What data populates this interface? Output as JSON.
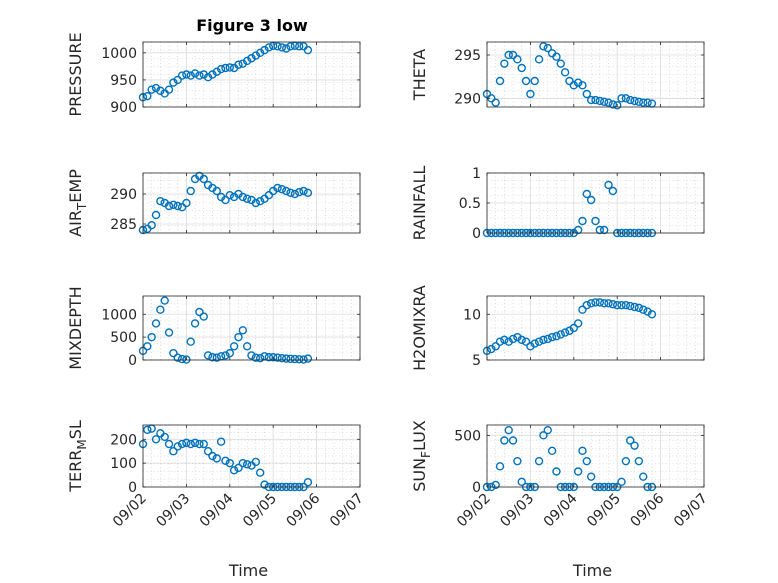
{
  "figure": {
    "title": "Figure 3 low"
  },
  "colors": {
    "marker": "#0072BD",
    "axis": "#262626",
    "grid": "#c8c8c8"
  },
  "chart_data": [
    {
      "type": "scatter",
      "name": "PRESSURE",
      "ylabel_main": "PRESSURE",
      "ylabel_sub": "",
      "ylabel_tail": "",
      "xlabel": "",
      "ylim": [
        900,
        1020
      ],
      "yticks": [
        900,
        950,
        1000
      ],
      "ytick_labels": [
        "900",
        "950",
        "1000"
      ],
      "xlim": [
        0,
        5
      ],
      "xticks": [
        0,
        1,
        2,
        3,
        4,
        5
      ],
      "xtick_labels": [
        "09/02",
        "09/03",
        "09/04",
        "09/05",
        "09/06",
        "09/07"
      ],
      "show_xtick_labels": false,
      "grid": true,
      "minor_grid": true,
      "x": [
        0.0,
        0.1,
        0.2,
        0.3,
        0.4,
        0.5,
        0.6,
        0.7,
        0.8,
        0.9,
        1.0,
        1.1,
        1.2,
        1.3,
        1.4,
        1.5,
        1.6,
        1.7,
        1.8,
        1.9,
        2.0,
        2.1,
        2.2,
        2.3,
        2.4,
        2.5,
        2.6,
        2.7,
        2.8,
        2.9,
        3.0,
        3.1,
        3.2,
        3.3,
        3.4,
        3.5,
        3.6,
        3.7,
        3.8
      ],
      "y": [
        918,
        920,
        932,
        935,
        930,
        925,
        932,
        945,
        950,
        958,
        960,
        958,
        962,
        958,
        960,
        955,
        960,
        965,
        970,
        972,
        973,
        972,
        978,
        980,
        985,
        990,
        995,
        1000,
        1005,
        1010,
        1013,
        1012,
        1010,
        1008,
        1012,
        1013,
        1012,
        1012,
        1005
      ]
    },
    {
      "type": "scatter",
      "name": "THETA",
      "ylabel_main": "THETA",
      "ylabel_sub": "",
      "ylabel_tail": "",
      "xlabel": "",
      "ylim": [
        289,
        296.5
      ],
      "yticks": [
        290,
        295
      ],
      "ytick_labels": [
        "290",
        "295"
      ],
      "xlim": [
        0,
        5
      ],
      "xticks": [
        0,
        1,
        2,
        3,
        4,
        5
      ],
      "xtick_labels": [
        "09/02",
        "09/03",
        "09/04",
        "09/05",
        "09/06",
        "09/07"
      ],
      "show_xtick_labels": false,
      "grid": true,
      "minor_grid": true,
      "x": [
        0.0,
        0.1,
        0.2,
        0.3,
        0.4,
        0.5,
        0.6,
        0.7,
        0.8,
        0.9,
        1.0,
        1.1,
        1.2,
        1.3,
        1.4,
        1.5,
        1.6,
        1.7,
        1.8,
        1.9,
        2.0,
        2.1,
        2.2,
        2.3,
        2.4,
        2.5,
        2.6,
        2.7,
        2.8,
        2.9,
        3.0,
        3.1,
        3.2,
        3.3,
        3.4,
        3.5,
        3.6,
        3.7,
        3.8
      ],
      "y": [
        290.5,
        290.0,
        289.5,
        292.0,
        294.0,
        295.0,
        295.0,
        294.5,
        293.5,
        292.0,
        290.5,
        292.0,
        294.5,
        296.0,
        295.8,
        295.2,
        294.8,
        294.0,
        293.0,
        292.0,
        291.5,
        291.8,
        291.5,
        290.5,
        289.8,
        289.8,
        289.7,
        289.6,
        289.5,
        289.3,
        289.2,
        290.0,
        290.0,
        289.8,
        289.7,
        289.6,
        289.5,
        289.5,
        289.4
      ]
    },
    {
      "type": "scatter",
      "name": "AIR_TEMP",
      "ylabel_main": "AIR",
      "ylabel_sub": "T",
      "ylabel_tail": "EMP",
      "xlabel": "",
      "ylim": [
        283.5,
        293.5
      ],
      "yticks": [
        285,
        290
      ],
      "ytick_labels": [
        "285",
        "290"
      ],
      "xlim": [
        0,
        5
      ],
      "xticks": [
        0,
        1,
        2,
        3,
        4,
        5
      ],
      "xtick_labels": [
        "09/02",
        "09/03",
        "09/04",
        "09/05",
        "09/06",
        "09/07"
      ],
      "show_xtick_labels": false,
      "grid": true,
      "minor_grid": true,
      "x": [
        0.0,
        0.1,
        0.2,
        0.3,
        0.4,
        0.5,
        0.6,
        0.7,
        0.8,
        0.9,
        1.0,
        1.1,
        1.2,
        1.3,
        1.4,
        1.5,
        1.6,
        1.7,
        1.8,
        1.9,
        2.0,
        2.1,
        2.2,
        2.3,
        2.4,
        2.5,
        2.6,
        2.7,
        2.8,
        2.9,
        3.0,
        3.1,
        3.2,
        3.3,
        3.4,
        3.5,
        3.6,
        3.7,
        3.8
      ],
      "y": [
        284.0,
        284.2,
        284.8,
        286.5,
        288.8,
        288.5,
        288.0,
        288.2,
        288.0,
        287.8,
        288.5,
        290.5,
        292.5,
        293.0,
        292.5,
        291.5,
        291.0,
        290.5,
        289.5,
        289.0,
        289.8,
        289.5,
        290.0,
        289.5,
        289.2,
        289.0,
        288.5,
        288.8,
        289.2,
        289.8,
        290.5,
        291.0,
        290.8,
        290.5,
        290.2,
        290.0,
        290.3,
        290.5,
        290.2
      ]
    },
    {
      "type": "scatter",
      "name": "RAINFALL",
      "ylabel_main": "RAINFALL",
      "ylabel_sub": "",
      "ylabel_tail": "",
      "xlabel": "",
      "ylim": [
        0,
        1
      ],
      "yticks": [
        0,
        0.5,
        1
      ],
      "ytick_labels": [
        "0",
        "0.5",
        "1"
      ],
      "xlim": [
        0,
        5
      ],
      "xticks": [
        0,
        1,
        2,
        3,
        4,
        5
      ],
      "xtick_labels": [
        "09/02",
        "09/03",
        "09/04",
        "09/05",
        "09/06",
        "09/07"
      ],
      "show_xtick_labels": false,
      "grid": true,
      "minor_grid": true,
      "x": [
        0.0,
        0.1,
        0.2,
        0.3,
        0.4,
        0.5,
        0.6,
        0.7,
        0.8,
        0.9,
        1.0,
        1.1,
        1.2,
        1.3,
        1.4,
        1.5,
        1.6,
        1.7,
        1.8,
        1.9,
        2.0,
        2.1,
        2.2,
        2.3,
        2.4,
        2.5,
        2.6,
        2.7,
        2.8,
        2.9,
        3.0,
        3.1,
        3.2,
        3.3,
        3.4,
        3.5,
        3.6,
        3.7,
        3.8
      ],
      "y": [
        0,
        0,
        0,
        0,
        0,
        0,
        0,
        0,
        0,
        0,
        0,
        0,
        0,
        0,
        0,
        0,
        0,
        0,
        0,
        0,
        0,
        0.05,
        0.2,
        0.65,
        0.55,
        0.2,
        0.05,
        0.05,
        0.8,
        0.7,
        0,
        0,
        0,
        0,
        0,
        0,
        0,
        0,
        0
      ]
    },
    {
      "type": "scatter",
      "name": "MIXDEPTH",
      "ylabel_main": "MIXDEPTH",
      "ylabel_sub": "",
      "ylabel_tail": "",
      "xlabel": "",
      "ylim": [
        0,
        1400
      ],
      "yticks": [
        0,
        500,
        1000
      ],
      "ytick_labels": [
        "0",
        "500",
        "1000"
      ],
      "xlim": [
        0,
        5
      ],
      "xticks": [
        0,
        1,
        2,
        3,
        4,
        5
      ],
      "xtick_labels": [
        "09/02",
        "09/03",
        "09/04",
        "09/05",
        "09/06",
        "09/07"
      ],
      "show_xtick_labels": false,
      "grid": true,
      "minor_grid": true,
      "x": [
        0.0,
        0.1,
        0.2,
        0.3,
        0.4,
        0.5,
        0.6,
        0.7,
        0.8,
        0.9,
        1.0,
        1.1,
        1.2,
        1.3,
        1.4,
        1.5,
        1.6,
        1.7,
        1.8,
        1.9,
        2.0,
        2.1,
        2.2,
        2.3,
        2.4,
        2.5,
        2.6,
        2.7,
        2.8,
        2.9,
        3.0,
        3.1,
        3.2,
        3.3,
        3.4,
        3.5,
        3.6,
        3.7,
        3.8
      ],
      "y": [
        200,
        300,
        500,
        800,
        1100,
        1300,
        600,
        150,
        50,
        20,
        10,
        400,
        800,
        1050,
        950,
        100,
        60,
        50,
        80,
        100,
        150,
        300,
        500,
        650,
        300,
        100,
        50,
        40,
        80,
        60,
        60,
        50,
        40,
        30,
        25,
        20,
        15,
        10,
        30
      ]
    },
    {
      "type": "scatter",
      "name": "H2OMIXRA",
      "ylabel_main": "H2OMIXRA",
      "ylabel_sub": "",
      "ylabel_tail": "",
      "xlabel": "",
      "ylim": [
        5,
        12
      ],
      "yticks": [
        5,
        10
      ],
      "ytick_labels": [
        "5",
        "10"
      ],
      "xlim": [
        0,
        5
      ],
      "xticks": [
        0,
        1,
        2,
        3,
        4,
        5
      ],
      "xtick_labels": [
        "09/02",
        "09/03",
        "09/04",
        "09/05",
        "09/06",
        "09/07"
      ],
      "show_xtick_labels": false,
      "grid": true,
      "minor_grid": true,
      "x": [
        0.0,
        0.1,
        0.2,
        0.3,
        0.4,
        0.5,
        0.6,
        0.7,
        0.8,
        0.9,
        1.0,
        1.1,
        1.2,
        1.3,
        1.4,
        1.5,
        1.6,
        1.7,
        1.8,
        1.9,
        2.0,
        2.1,
        2.2,
        2.3,
        2.4,
        2.5,
        2.6,
        2.7,
        2.8,
        2.9,
        3.0,
        3.1,
        3.2,
        3.3,
        3.4,
        3.5,
        3.6,
        3.7,
        3.8
      ],
      "y": [
        6.0,
        6.2,
        6.5,
        7.0,
        7.2,
        7.0,
        7.3,
        7.5,
        7.2,
        7.0,
        6.5,
        6.8,
        7.0,
        7.2,
        7.3,
        7.5,
        7.6,
        7.8,
        8.0,
        8.2,
        8.5,
        9.0,
        10.5,
        11.0,
        11.2,
        11.3,
        11.3,
        11.2,
        11.2,
        11.1,
        11.0,
        11.0,
        11.0,
        10.9,
        10.8,
        10.7,
        10.5,
        10.3,
        10.0
      ]
    },
    {
      "type": "scatter",
      "name": "TERR_MSL",
      "ylabel_main": "TERR",
      "ylabel_sub": "M",
      "ylabel_tail": "SL",
      "xlabel": "Time",
      "ylim": [
        0,
        260
      ],
      "yticks": [
        0,
        100,
        200
      ],
      "ytick_labels": [
        "0",
        "100",
        "200"
      ],
      "xlim": [
        0,
        5
      ],
      "xticks": [
        0,
        1,
        2,
        3,
        4,
        5
      ],
      "xtick_labels": [
        "09/02",
        "09/03",
        "09/04",
        "09/05",
        "09/06",
        "09/07"
      ],
      "show_xtick_labels": true,
      "grid": true,
      "minor_grid": true,
      "x": [
        0.0,
        0.1,
        0.2,
        0.3,
        0.4,
        0.5,
        0.6,
        0.7,
        0.8,
        0.9,
        1.0,
        1.1,
        1.2,
        1.3,
        1.4,
        1.5,
        1.6,
        1.7,
        1.8,
        1.9,
        2.0,
        2.1,
        2.2,
        2.3,
        2.4,
        2.5,
        2.6,
        2.7,
        2.8,
        2.9,
        3.0,
        3.1,
        3.2,
        3.3,
        3.4,
        3.5,
        3.6,
        3.7,
        3.8
      ],
      "y": [
        180,
        240,
        245,
        200,
        225,
        210,
        180,
        150,
        170,
        180,
        185,
        180,
        185,
        180,
        180,
        150,
        130,
        120,
        190,
        110,
        100,
        70,
        80,
        100,
        95,
        90,
        105,
        60,
        10,
        0,
        0,
        0,
        0,
        0,
        0,
        0,
        0,
        0,
        20
      ]
    },
    {
      "type": "scatter",
      "name": "SUN_FLUX",
      "ylabel_main": "SUN",
      "ylabel_sub": "F",
      "ylabel_tail": "LUX",
      "xlabel": "Time",
      "ylim": [
        0,
        600
      ],
      "yticks": [
        0,
        500
      ],
      "ytick_labels": [
        "0",
        "500"
      ],
      "xlim": [
        0,
        5
      ],
      "xticks": [
        0,
        1,
        2,
        3,
        4,
        5
      ],
      "xtick_labels": [
        "09/02",
        "09/03",
        "09/04",
        "09/05",
        "09/06",
        "09/07"
      ],
      "show_xtick_labels": true,
      "grid": true,
      "minor_grid": true,
      "x": [
        0.0,
        0.1,
        0.2,
        0.3,
        0.4,
        0.5,
        0.6,
        0.7,
        0.8,
        0.9,
        1.0,
        1.1,
        1.2,
        1.3,
        1.4,
        1.5,
        1.6,
        1.7,
        1.8,
        1.9,
        2.0,
        2.1,
        2.2,
        2.3,
        2.4,
        2.5,
        2.6,
        2.7,
        2.8,
        2.9,
        3.0,
        3.1,
        3.2,
        3.3,
        3.4,
        3.5,
        3.6,
        3.7,
        3.8
      ],
      "y": [
        0,
        0,
        20,
        200,
        450,
        550,
        450,
        250,
        50,
        0,
        0,
        0,
        250,
        500,
        550,
        350,
        150,
        0,
        0,
        0,
        0,
        150,
        350,
        250,
        100,
        0,
        0,
        0,
        0,
        0,
        0,
        50,
        250,
        450,
        400,
        250,
        100,
        0,
        0
      ]
    }
  ]
}
